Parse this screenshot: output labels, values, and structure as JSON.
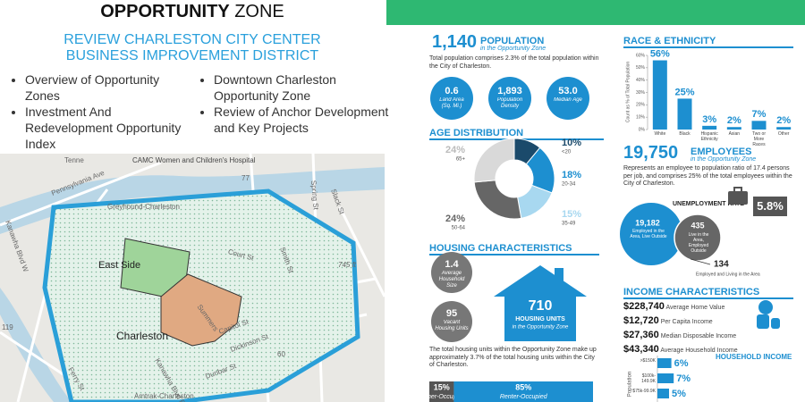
{
  "left": {
    "title_bold": "OPPORTUNITY",
    "title_light": "ZONE",
    "subtitle": "REVIEW CHARLESTON CITY CENTER BUSINESS IMPROVEMENT DISTRICT",
    "bullets_left": [
      "Overview of Opportunity Zones",
      "Investment And Redevelopment Opportunity Index"
    ],
    "bullets_right": [
      "Downtown Charleston Opportunity Zone",
      "Review of Anchor Development and Key Projects"
    ]
  },
  "map": {
    "labels": [
      "Tenne",
      "Pennsylvania Ave",
      "Kanawha Blvd W",
      "CAMC Women and Children's Hospital",
      "Greyhound-Charleston",
      "East Side",
      "Charleston",
      "Summers",
      "Court St",
      "Capitol St",
      "Dickinson St",
      "Smith St",
      "Spring St",
      "Slack St",
      "745 ft",
      "Ferry St",
      "Kanawha Blvd E",
      "Dunbar St",
      "Amtrak-Charleston",
      "77",
      "60",
      "119"
    ]
  },
  "population": {
    "value": "1,140",
    "label": "POPULATION",
    "sublabel": "in the Opportunity Zone",
    "text": "Total population comprises 2.3% of the total population within the City of Charleston.",
    "stats": [
      {
        "value": "0.6",
        "label": "Land Area (Sq. Mi.)"
      },
      {
        "value": "1,893",
        "label": "Population Density"
      },
      {
        "value": "53.0",
        "label": "Median Age"
      }
    ]
  },
  "race": {
    "title": "RACE & ETHNICITY",
    "axis_label": "Count as % of Total Population",
    "ylim": [
      0,
      60
    ],
    "yticks": [
      {
        "value": 0,
        "label": "0%"
      },
      {
        "value": 10,
        "label": "10%"
      },
      {
        "value": 20,
        "label": "20%"
      },
      {
        "value": 30,
        "label": "30%"
      },
      {
        "value": 40,
        "label": "40%"
      },
      {
        "value": 50,
        "label": "50%"
      },
      {
        "value": 60,
        "label": "60%"
      }
    ],
    "categories": [
      "White",
      "Black",
      "Hispanic Ethnicity",
      "Asian",
      "Two or More Races",
      "Other"
    ],
    "values": [
      56,
      25,
      3,
      2,
      7,
      2
    ],
    "value_labels": [
      "56%",
      "25%",
      "3%",
      "2%",
      "7%",
      "2%"
    ],
    "color": "#1d8fd0"
  },
  "age": {
    "title": "AGE DISTRIBUTION",
    "categories": [
      "<20",
      "20-34",
      "35-49",
      "50-64",
      "65+"
    ],
    "values": [
      10,
      18,
      15,
      24,
      24
    ],
    "value_labels": [
      "10%",
      "18%",
      "15%",
      "24%",
      "24%"
    ],
    "colors": [
      "#1b4a6b",
      "#1d8fd0",
      "#a8d8f0",
      "#666666",
      "#d9d9d9"
    ]
  },
  "housing": {
    "title": "HOUSING CHARACTERISTICS",
    "stats": [
      {
        "value": "1.4",
        "label": "Average Household Size"
      },
      {
        "value": "95",
        "label": "Vacant Housing Units"
      }
    ],
    "units": "710",
    "units_label": "HOUSING UNITS",
    "units_sublabel": "in the Opportunity Zone",
    "text": "The total housing units within the Opportunity Zone make up approximately 3.7% of the total housing units within the City of Charleston.",
    "tenure": {
      "categories": [
        "Owner-Occupied",
        "Renter-Occupied"
      ],
      "values": [
        15,
        85
      ],
      "value_labels": [
        "15%",
        "85%"
      ],
      "colors": [
        "#555555",
        "#1d8fd0"
      ]
    }
  },
  "employees": {
    "value": "19,750",
    "label": "EMPLOYEES",
    "sublabel": "in the Opportunity Zone",
    "text": "Represents an employee to population ratio of 17.4 persons per job, and comprises 25% of the total employees within the City of Charleston.",
    "unemployment_label": "UNEMPLOYMENT RATE",
    "unemployment": "5.8%",
    "outside_value": "19,182",
    "outside_label": "Employed in the Area, Live Outside",
    "inside_value": "435",
    "inside_label": "Live in the Area, Employed Outside",
    "both_value": "134",
    "both_label": "Employed and Living in the Area"
  },
  "income": {
    "title": "INCOME CHARACTERISTICS",
    "rows": [
      {
        "value": "$228,740",
        "label": "Average Home Value"
      },
      {
        "value": "$12,720",
        "label": "Per Capita Income"
      },
      {
        "value": "$27,360",
        "label": "Median Disposable Income"
      },
      {
        "value": "$43,340",
        "label": "Average Household Income"
      }
    ]
  },
  "household_income": {
    "title": "HOUSEHOLD INCOME",
    "axis_label": "Population",
    "categories": [
      ">$150K",
      "$100k-149.9K",
      "$75k-99.9K"
    ],
    "values": [
      6,
      7,
      5
    ],
    "value_labels": [
      "6%",
      "7%",
      "5%"
    ],
    "color": "#1d8fd0"
  }
}
